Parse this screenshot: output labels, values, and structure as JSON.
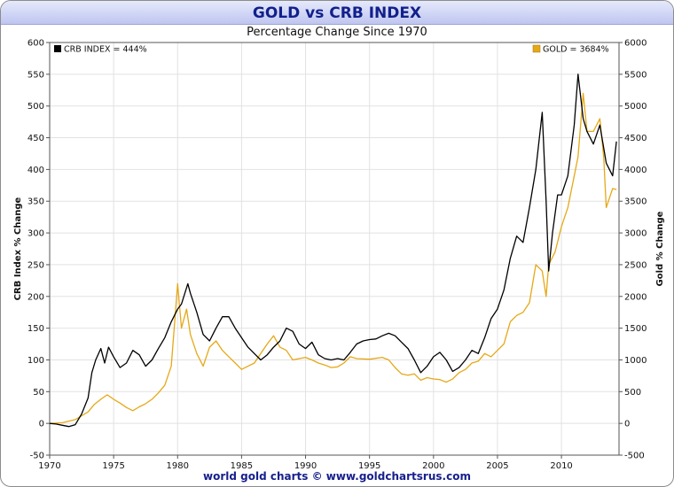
{
  "chart_data": {
    "type": "line",
    "title": "GOLD vs CRB INDEX",
    "subtitle": "Percentage Change Since 1970",
    "footer": "world gold charts © www.goldchartsrus.com",
    "x_range": [
      1970,
      2014.5
    ],
    "x_ticks": [
      "1970",
      "1975",
      "1980",
      "1985",
      "1990",
      "1995",
      "2000",
      "2005",
      "2010"
    ],
    "left_axis": {
      "label": "CRB Index  % Change",
      "ylim": [
        -50,
        600
      ],
      "ticks": [
        "-50",
        "0",
        "50",
        "100",
        "150",
        "200",
        "250",
        "300",
        "350",
        "400",
        "450",
        "500",
        "550",
        "600"
      ]
    },
    "right_axis": {
      "label": "Gold  % Change",
      "ylim": [
        -500,
        6000
      ],
      "ticks": [
        "-500",
        "0",
        "500",
        "1000",
        "1500",
        "2000",
        "2500",
        "3000",
        "3500",
        "4000",
        "4500",
        "5000",
        "5500",
        "6000"
      ]
    },
    "grid": true,
    "series": [
      {
        "name": "CRB INDEX",
        "legend": "CRB INDEX = 444%",
        "axis": "left",
        "color": "#000000",
        "points": [
          [
            1970,
            0
          ],
          [
            1970.5,
            -1
          ],
          [
            1971,
            -3
          ],
          [
            1971.5,
            -5
          ],
          [
            1972,
            -2
          ],
          [
            1972.5,
            15
          ],
          [
            1973,
            40
          ],
          [
            1973.3,
            80
          ],
          [
            1973.6,
            100
          ],
          [
            1974,
            118
          ],
          [
            1974.3,
            95
          ],
          [
            1974.6,
            120
          ],
          [
            1975,
            105
          ],
          [
            1975.5,
            88
          ],
          [
            1976,
            95
          ],
          [
            1976.5,
            115
          ],
          [
            1977,
            108
          ],
          [
            1977.5,
            90
          ],
          [
            1978,
            100
          ],
          [
            1978.5,
            118
          ],
          [
            1979,
            135
          ],
          [
            1979.5,
            160
          ],
          [
            1980,
            180
          ],
          [
            1980.3,
            188
          ],
          [
            1980.8,
            220
          ],
          [
            1981,
            205
          ],
          [
            1981.5,
            175
          ],
          [
            1982,
            140
          ],
          [
            1982.5,
            130
          ],
          [
            1983,
            150
          ],
          [
            1983.5,
            168
          ],
          [
            1984,
            168
          ],
          [
            1984.5,
            150
          ],
          [
            1985,
            135
          ],
          [
            1985.5,
            120
          ],
          [
            1986,
            110
          ],
          [
            1986.5,
            100
          ],
          [
            1987,
            108
          ],
          [
            1987.5,
            120
          ],
          [
            1988,
            130
          ],
          [
            1988.5,
            150
          ],
          [
            1989,
            145
          ],
          [
            1989.5,
            125
          ],
          [
            1990,
            118
          ],
          [
            1990.5,
            128
          ],
          [
            1991,
            108
          ],
          [
            1991.5,
            102
          ],
          [
            1992,
            100
          ],
          [
            1992.5,
            102
          ],
          [
            1993,
            100
          ],
          [
            1993.5,
            112
          ],
          [
            1994,
            125
          ],
          [
            1994.5,
            130
          ],
          [
            1995,
            132
          ],
          [
            1995.5,
            133
          ],
          [
            1996,
            138
          ],
          [
            1996.5,
            142
          ],
          [
            1997,
            138
          ],
          [
            1997.5,
            128
          ],
          [
            1998,
            118
          ],
          [
            1998.5,
            100
          ],
          [
            1999,
            80
          ],
          [
            1999.5,
            90
          ],
          [
            2000,
            105
          ],
          [
            2000.5,
            112
          ],
          [
            2001,
            100
          ],
          [
            2001.5,
            82
          ],
          [
            2002,
            88
          ],
          [
            2002.5,
            100
          ],
          [
            2003,
            115
          ],
          [
            2003.5,
            110
          ],
          [
            2004,
            135
          ],
          [
            2004.5,
            165
          ],
          [
            2005,
            180
          ],
          [
            2005.5,
            210
          ],
          [
            2006,
            260
          ],
          [
            2006.5,
            295
          ],
          [
            2007,
            285
          ],
          [
            2007.5,
            340
          ],
          [
            2008,
            400
          ],
          [
            2008.5,
            490
          ],
          [
            2008.8,
            350
          ],
          [
            2009,
            240
          ],
          [
            2009.3,
            300
          ],
          [
            2009.7,
            360
          ],
          [
            2010,
            360
          ],
          [
            2010.5,
            390
          ],
          [
            2011,
            470
          ],
          [
            2011.3,
            550
          ],
          [
            2011.7,
            480
          ],
          [
            2012,
            460
          ],
          [
            2012.5,
            440
          ],
          [
            2013,
            470
          ],
          [
            2013.5,
            410
          ],
          [
            2014,
            390
          ],
          [
            2014.3,
            444
          ]
        ]
      },
      {
        "name": "GOLD",
        "legend": "GOLD = 3684%",
        "axis": "right",
        "color": "#e6a817",
        "points": [
          [
            1970,
            0
          ],
          [
            1971,
            10
          ],
          [
            1972,
            60
          ],
          [
            1972.5,
            120
          ],
          [
            1973,
            180
          ],
          [
            1973.5,
            300
          ],
          [
            1974,
            380
          ],
          [
            1974.5,
            450
          ],
          [
            1975,
            380
          ],
          [
            1975.5,
            320
          ],
          [
            1976,
            250
          ],
          [
            1976.5,
            200
          ],
          [
            1977,
            260
          ],
          [
            1977.5,
            310
          ],
          [
            1978,
            380
          ],
          [
            1978.5,
            480
          ],
          [
            1979,
            600
          ],
          [
            1979.5,
            900
          ],
          [
            1980,
            2200
          ],
          [
            1980.3,
            1500
          ],
          [
            1980.7,
            1800
          ],
          [
            1981,
            1400
          ],
          [
            1981.5,
            1100
          ],
          [
            1982,
            900
          ],
          [
            1982.5,
            1200
          ],
          [
            1983,
            1300
          ],
          [
            1983.5,
            1150
          ],
          [
            1984,
            1050
          ],
          [
            1984.5,
            950
          ],
          [
            1985,
            850
          ],
          [
            1985.5,
            900
          ],
          [
            1986,
            950
          ],
          [
            1986.5,
            1100
          ],
          [
            1987,
            1250
          ],
          [
            1987.5,
            1380
          ],
          [
            1988,
            1200
          ],
          [
            1988.5,
            1150
          ],
          [
            1989,
            1000
          ],
          [
            1989.5,
            1020
          ],
          [
            1990,
            1040
          ],
          [
            1990.5,
            1000
          ],
          [
            1991,
            950
          ],
          [
            1991.5,
            920
          ],
          [
            1992,
            880
          ],
          [
            1992.5,
            890
          ],
          [
            1993,
            950
          ],
          [
            1993.5,
            1050
          ],
          [
            1994,
            1020
          ],
          [
            1995,
            1010
          ],
          [
            1996,
            1040
          ],
          [
            1996.5,
            1000
          ],
          [
            1997,
            880
          ],
          [
            1997.5,
            780
          ],
          [
            1998,
            760
          ],
          [
            1998.5,
            780
          ],
          [
            1999,
            680
          ],
          [
            1999.5,
            720
          ],
          [
            2000,
            700
          ],
          [
            2000.5,
            690
          ],
          [
            2001,
            650
          ],
          [
            2001.5,
            700
          ],
          [
            2002,
            800
          ],
          [
            2002.5,
            850
          ],
          [
            2003,
            950
          ],
          [
            2003.5,
            980
          ],
          [
            2004,
            1100
          ],
          [
            2004.5,
            1050
          ],
          [
            2005,
            1150
          ],
          [
            2005.5,
            1250
          ],
          [
            2006,
            1600
          ],
          [
            2006.5,
            1700
          ],
          [
            2007,
            1750
          ],
          [
            2007.5,
            1900
          ],
          [
            2008,
            2500
          ],
          [
            2008.5,
            2400
          ],
          [
            2008.8,
            2000
          ],
          [
            2009,
            2500
          ],
          [
            2009.5,
            2700
          ],
          [
            2010,
            3100
          ],
          [
            2010.5,
            3400
          ],
          [
            2011,
            3900
          ],
          [
            2011.3,
            4200
          ],
          [
            2011.7,
            5200
          ],
          [
            2012,
            4600
          ],
          [
            2012.5,
            4600
          ],
          [
            2013,
            4800
          ],
          [
            2013.3,
            4200
          ],
          [
            2013.5,
            3400
          ],
          [
            2014,
            3700
          ],
          [
            2014.3,
            3684
          ]
        ]
      }
    ]
  }
}
